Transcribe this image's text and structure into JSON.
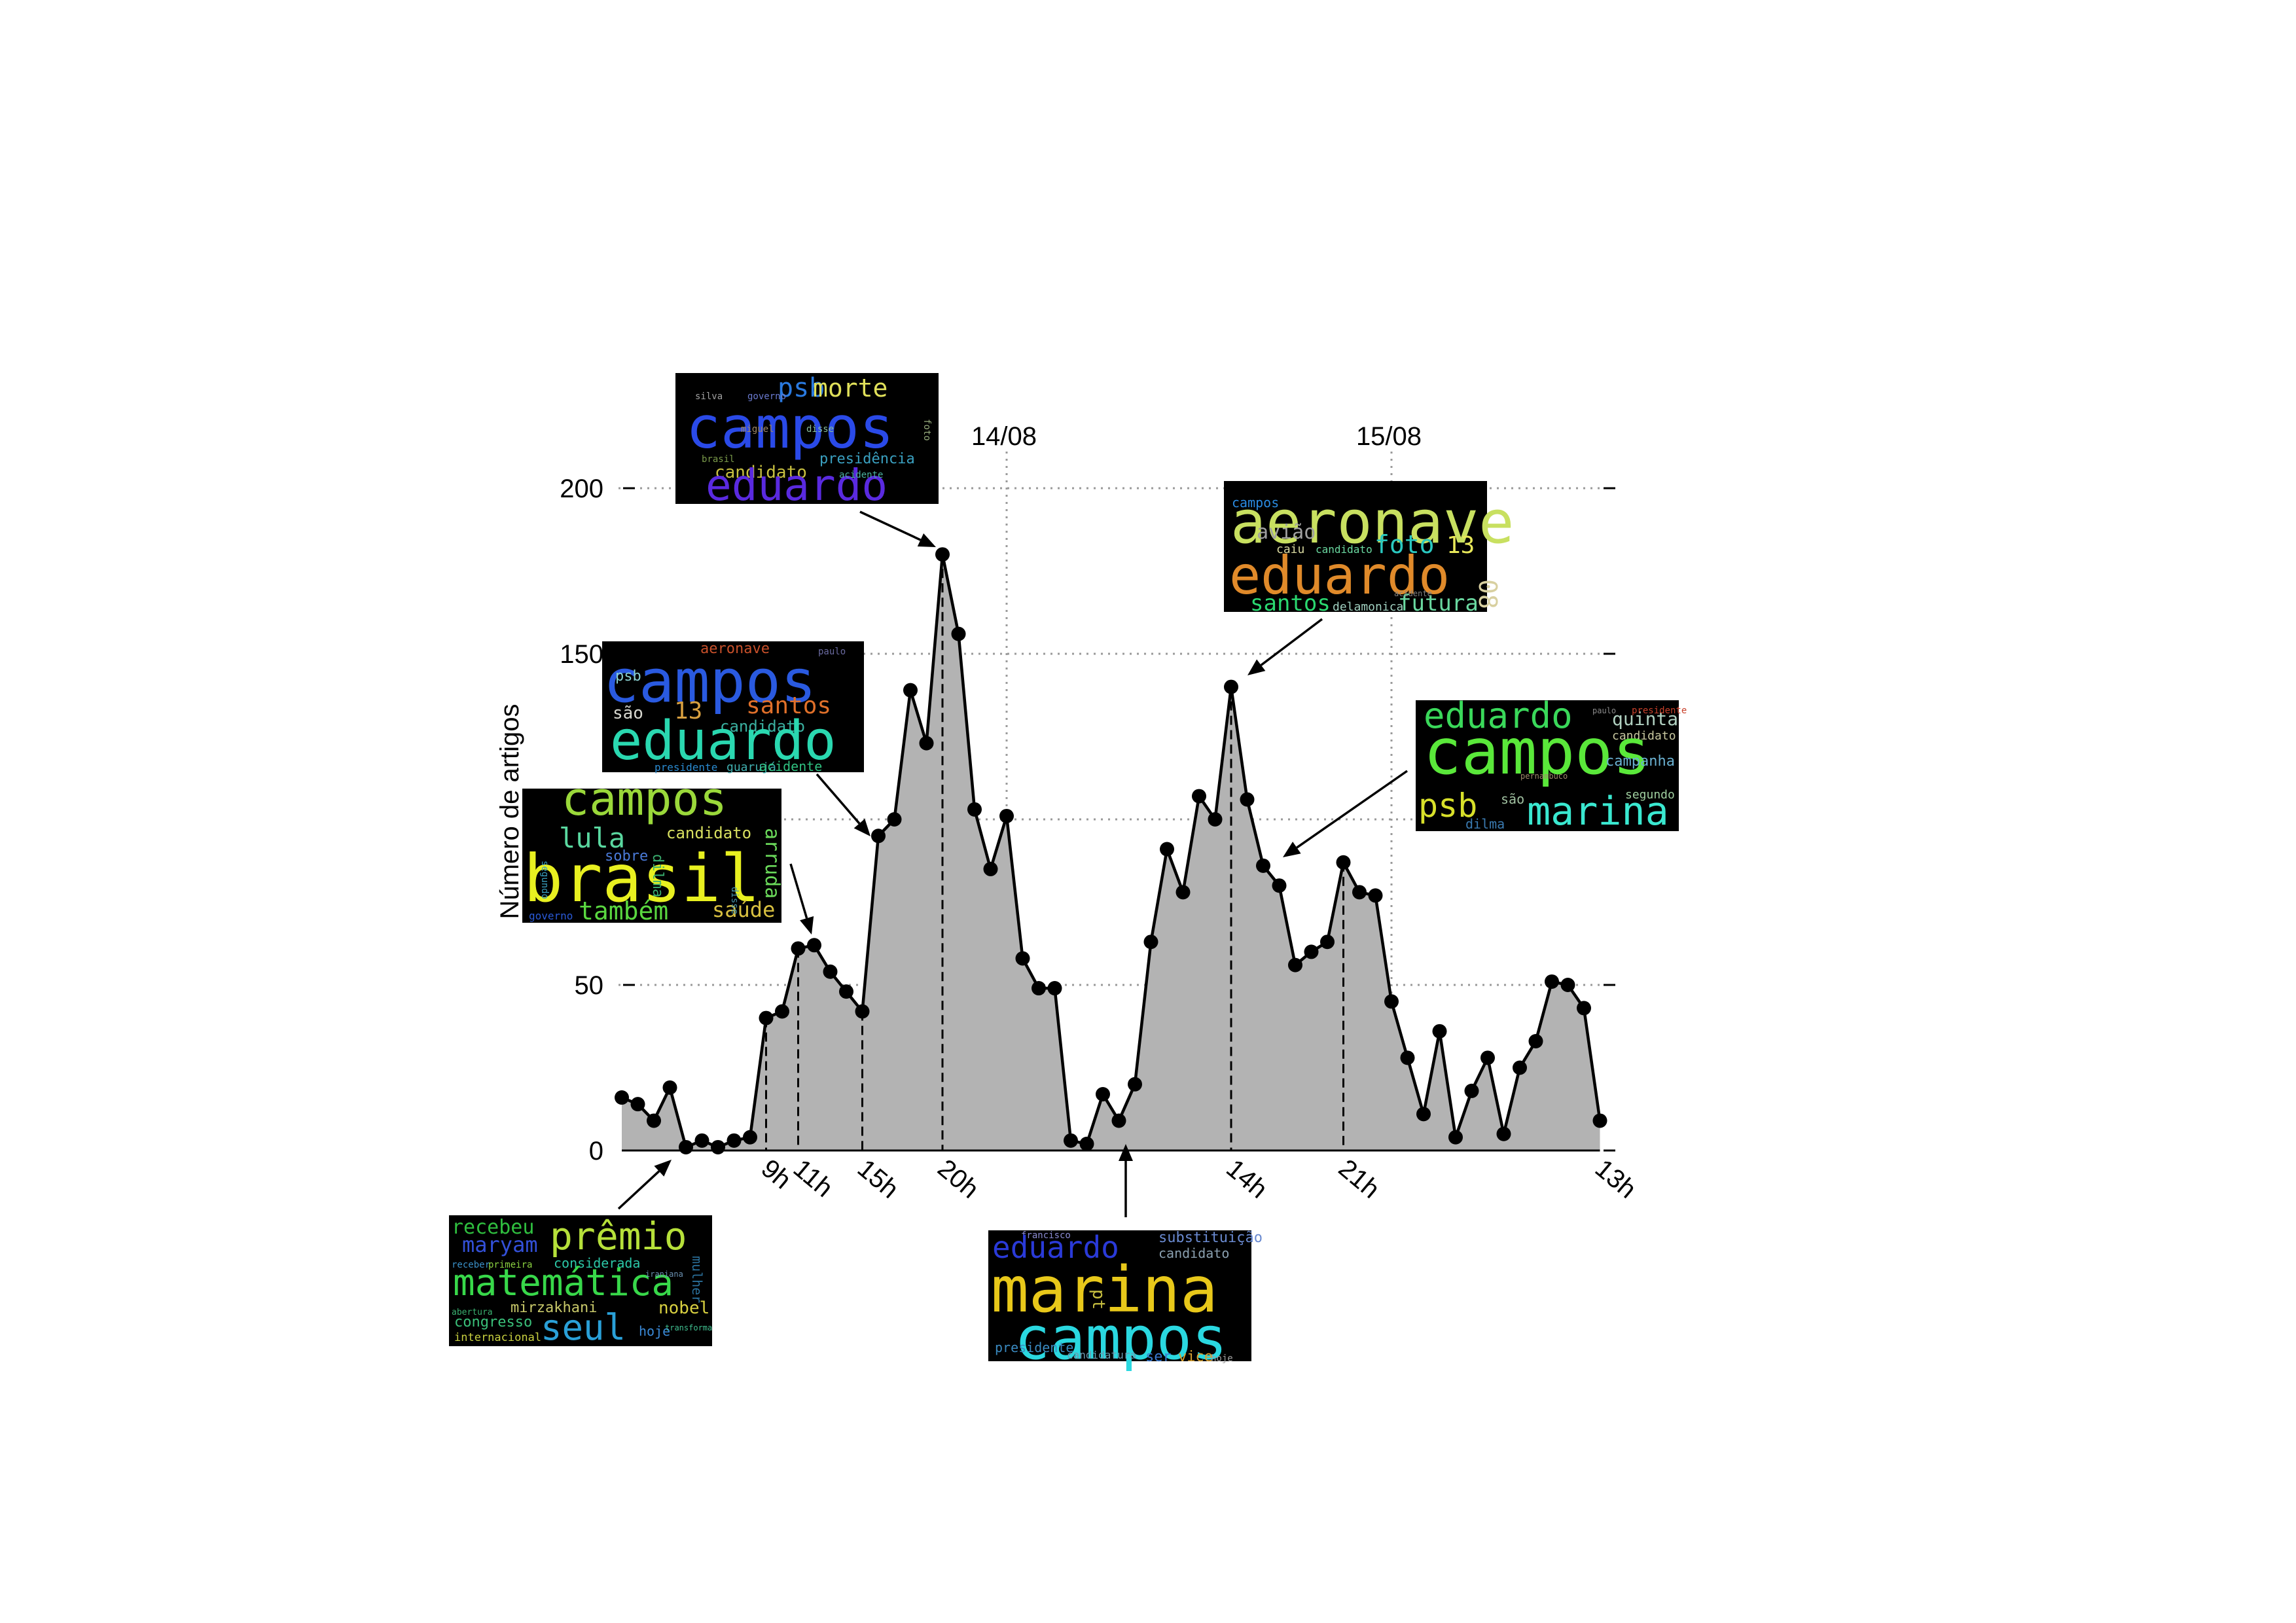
{
  "chart_data": {
    "type": "area",
    "title": "",
    "xlabel": "",
    "ylabel": "Número de artigos",
    "ylim": [
      0,
      200
    ],
    "yticks": [
      0,
      50,
      100,
      150,
      200
    ],
    "ytick_labels": [
      "0",
      "50",
      "",
      "150",
      "200"
    ],
    "grid": "horizontal dotted at y ticks; vertical dotted at day boundaries",
    "day_markers": [
      {
        "hour": 44,
        "label": "14/08"
      },
      {
        "hour": 68,
        "label": "15/08"
      }
    ],
    "xtick_labels": [
      {
        "hour": 29,
        "label": "9h"
      },
      {
        "hour": 31,
        "label": "11h"
      },
      {
        "hour": 35,
        "label": "15h"
      },
      {
        "hour": 40,
        "label": "20h"
      },
      {
        "hour": 58,
        "label": "14h"
      },
      {
        "hour": 65,
        "label": "21h"
      },
      {
        "hour": 81,
        "label": "13h"
      }
    ],
    "peak_markers": [
      29,
      31,
      35,
      40,
      58,
      65
    ],
    "series": [
      {
        "x": [
          20,
          21,
          22,
          23,
          24,
          25,
          26,
          27,
          28,
          29,
          30,
          31,
          32,
          33,
          34,
          35,
          36,
          37,
          38,
          39,
          40,
          41,
          42,
          43,
          44,
          45,
          46,
          47,
          48,
          49,
          50,
          51,
          52,
          53,
          54,
          55,
          56,
          57,
          58,
          59,
          60,
          61,
          62,
          63,
          64,
          65,
          66,
          67,
          68,
          69,
          70,
          71,
          72,
          73,
          74,
          75,
          76,
          77,
          78,
          79,
          80,
          81
        ],
        "values": [
          16,
          14,
          9,
          19,
          1,
          3,
          1,
          3,
          4,
          40,
          42,
          61,
          62,
          54,
          48,
          42,
          95,
          100,
          139,
          123,
          180,
          156,
          103,
          85,
          101,
          58,
          49,
          49,
          3,
          2,
          17,
          9,
          20,
          63,
          91,
          78,
          107,
          100,
          140,
          106,
          86,
          80,
          56,
          60,
          63,
          87,
          78,
          77,
          45,
          28,
          11,
          36,
          4,
          18,
          28,
          5,
          25,
          33,
          51,
          50,
          43,
          9
        ]
      }
    ],
    "annotations": [
      {
        "target_hour": 24,
        "colors": "dark",
        "words": [
          {
            "text": "recebeu",
            "color": "#2fbf3f"
          },
          {
            "text": "maryam",
            "color": "#3350d8"
          },
          {
            "text": "prêmio",
            "color": "#b6e03a"
          },
          {
            "text": "considerada",
            "color": "#2cc8a8"
          },
          {
            "text": "matemática",
            "color": "#38d84a"
          },
          {
            "text": "mulher",
            "color": "#2a6f9a"
          },
          {
            "text": "mirzakhani",
            "color": "#c8c86a"
          },
          {
            "text": "nobel",
            "color": "#d8d040"
          },
          {
            "text": "seul",
            "color": "#2aa0d8"
          },
          {
            "text": "congresso",
            "color": "#3ac07a"
          },
          {
            "text": "hoje",
            "color": "#3a8ad8"
          },
          {
            "text": "internacional",
            "color": "#c8d040"
          },
          {
            "text": "receber",
            "color": "#3a90c8"
          },
          {
            "text": "primeira",
            "color": "#8ad040"
          },
          {
            "text": "abertura",
            "color": "#3ab070"
          },
          {
            "text": "iraniana",
            "color": "#6a90b0"
          },
          {
            "text": "transforma",
            "color": "#40c090"
          }
        ]
      },
      {
        "target_hour": 31,
        "words": [
          {
            "text": "campos",
            "color": "#9ad83a"
          },
          {
            "text": "lula",
            "color": "#5ad8a0"
          },
          {
            "text": "candidato",
            "color": "#d8e060"
          },
          {
            "text": "brasil",
            "color": "#e8f020"
          },
          {
            "text": "arruda",
            "color": "#6ad85a"
          },
          {
            "text": "dilma",
            "color": "#3ab070"
          },
          {
            "text": "sobre",
            "color": "#4a7ad8"
          },
          {
            "text": "também",
            "color": "#5ad840"
          },
          {
            "text": "saúde",
            "color": "#d8c040"
          },
          {
            "text": "segundo",
            "color": "#3aa0c0"
          },
          {
            "text": "governo",
            "color": "#2a5ad8"
          },
          {
            "text": "disse",
            "color": "#4a9ab0"
          }
        ]
      },
      {
        "target_hour": 35,
        "words": [
          {
            "text": "aeronave",
            "color": "#c8502a"
          },
          {
            "text": "campos",
            "color": "#2a5ae0"
          },
          {
            "text": "psb",
            "color": "#8ad0d0"
          },
          {
            "text": "são",
            "color": "#d8d8d0"
          },
          {
            "text": "13",
            "color": "#d8a040"
          },
          {
            "text": "santos",
            "color": "#e0702a"
          },
          {
            "text": "candidato",
            "color": "#3ab0a0"
          },
          {
            "text": "eduardo",
            "color": "#2ad8b0"
          },
          {
            "text": "presidente",
            "color": "#2a8ad0"
          },
          {
            "text": "guarujá",
            "color": "#40b0b0"
          },
          {
            "text": "acidente",
            "color": "#30c080"
          },
          {
            "text": "paulo",
            "color": "#6a6aa0"
          }
        ]
      },
      {
        "target_hour": 40,
        "words": [
          {
            "text": "psb",
            "color": "#2a7ae0"
          },
          {
            "text": "morte",
            "color": "#e0e05a"
          },
          {
            "text": "campos",
            "color": "#2a4ae8"
          },
          {
            "text": "presidência",
            "color": "#3aa0c0"
          },
          {
            "text": "candidato",
            "color": "#c8c040"
          },
          {
            "text": "eduardo",
            "color": "#5a2ae0"
          },
          {
            "text": "silva",
            "color": "#a0a0a0"
          },
          {
            "text": "governo",
            "color": "#6a7ad0"
          },
          {
            "text": "acidente",
            "color": "#4ab0a0"
          },
          {
            "text": "brasil",
            "color": "#7a9a4a"
          },
          {
            "text": "miguel",
            "color": "#a08a6a"
          },
          {
            "text": "foto",
            "color": "#9ab080"
          },
          {
            "text": "disse",
            "color": "#8ac0a0"
          }
        ]
      },
      {
        "target_hour": 50,
        "words": [
          {
            "text": "francisco",
            "color": "#8a8ad0"
          },
          {
            "text": "eduardo",
            "color": "#2a3ad8"
          },
          {
            "text": "substituição",
            "color": "#6a8ad0"
          },
          {
            "text": "candidato",
            "color": "#8aa0b0"
          },
          {
            "text": "pt",
            "color": "#c8c040"
          },
          {
            "text": "marina",
            "color": "#e8c81a"
          },
          {
            "text": "campos",
            "color": "#2ad8e0"
          },
          {
            "text": "presidente",
            "color": "#3a8ac0"
          },
          {
            "text": "candidatura",
            "color": "#6a9ab0"
          },
          {
            "text": "ser",
            "color": "#3a7ad0"
          },
          {
            "text": "vice",
            "color": "#d8a030"
          },
          {
            "text": "hoje",
            "color": "#a0a0a0"
          }
        ]
      },
      {
        "target_hour": 58,
        "words": [
          {
            "text": "campos",
            "color": "#2a8ae0"
          },
          {
            "text": "aeronave",
            "color": "#c8e060"
          },
          {
            "text": "avião",
            "color": "#a0a0a0"
          },
          {
            "text": "caiu",
            "color": "#d8d8a0"
          },
          {
            "text": "candidato",
            "color": "#6ad8a0"
          },
          {
            "text": "foto",
            "color": "#2ac8c0"
          },
          {
            "text": "13",
            "color": "#e8e85a"
          },
          {
            "text": "eduardo",
            "color": "#e08a2a"
          },
          {
            "text": "08",
            "color": "#d8d0a0"
          },
          {
            "text": "santos",
            "color": "#2ad870"
          },
          {
            "text": "delamonica",
            "color": "#a0d0c0"
          },
          {
            "text": "futura",
            "color": "#6ad8a0"
          },
          {
            "text": "acidente",
            "color": "#808080"
          }
        ]
      },
      {
        "target_hour": 61,
        "words": [
          {
            "text": "eduardo",
            "color": "#3ad85a"
          },
          {
            "text": "quinta",
            "color": "#b0d0c0"
          },
          {
            "text": "presidente",
            "color": "#c8402a"
          },
          {
            "text": "candidato",
            "color": "#c8c8a0"
          },
          {
            "text": "campos",
            "color": "#5ae83a"
          },
          {
            "text": "campanha",
            "color": "#6ab0d0"
          },
          {
            "text": "segundo",
            "color": "#a0d0a0"
          },
          {
            "text": "psb",
            "color": "#d8e02a"
          },
          {
            "text": "são",
            "color": "#a0c0a0"
          },
          {
            "text": "marina",
            "color": "#3ae8d0"
          },
          {
            "text": "dilma",
            "color": "#3a7ab0"
          },
          {
            "text": "pernambuco",
            "color": "#a08a6a"
          },
          {
            "text": "paulo",
            "color": "#8a8a8a"
          }
        ]
      }
    ]
  }
}
